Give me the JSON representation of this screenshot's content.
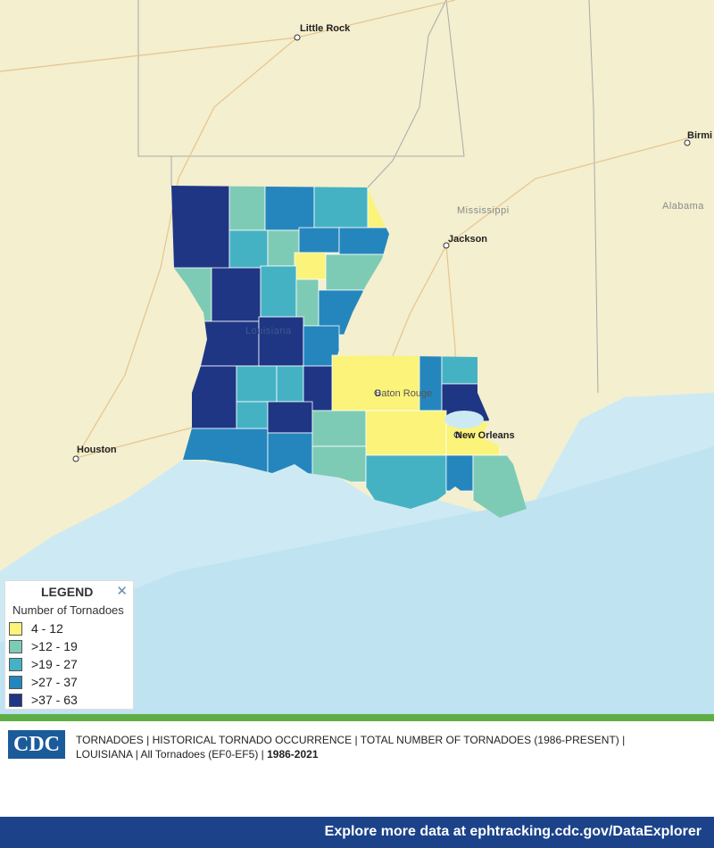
{
  "map": {
    "cities": [
      {
        "label": "Little Rock"
      },
      {
        "label": "Jackson"
      },
      {
        "label": "Baton Rouge"
      },
      {
        "label": "New Orleans"
      },
      {
        "label": "Houston"
      },
      {
        "label": "Birmi"
      }
    ],
    "regions": [
      {
        "label": "Mississippi"
      },
      {
        "label": "Alabama"
      },
      {
        "label": "Louisiana"
      }
    ]
  },
  "legend": {
    "title": "LEGEND",
    "close": "✕",
    "subtitle": "Number of Tornadoes",
    "classes": [
      {
        "label": "4 - 12",
        "color": "#fbf37a"
      },
      {
        "label": ">12 - 19",
        "color": "#7ecbb5"
      },
      {
        "label": ">19 - 27",
        "color": "#45b2c4"
      },
      {
        "label": ">27 - 37",
        "color": "#2586bd"
      },
      {
        "label": ">37 - 63",
        "color": "#1f3685"
      }
    ]
  },
  "footer": {
    "line1": "TORNADOES | HISTORICAL TORNADO OCCURRENCE | TOTAL NUMBER OF TORNADOES (1986-PRESENT) |",
    "line2": "LOUISIANA | All Tornadoes (EF0-EF5) |",
    "years": "1986-2021",
    "logo": "CDC",
    "link": "Explore more data at ephtracking.cdc.gov/DataExplorer"
  }
}
